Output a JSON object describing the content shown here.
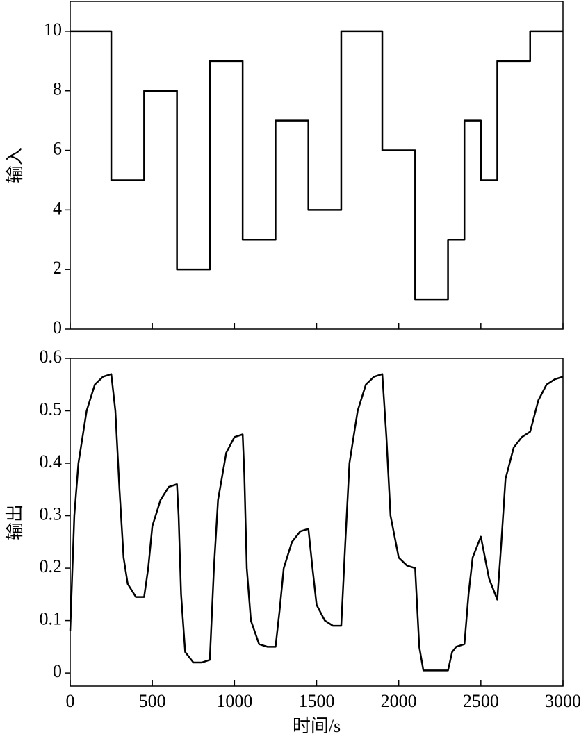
{
  "chart_data": [
    {
      "type": "line",
      "y_label": "输入",
      "x": [
        0,
        250,
        250,
        450,
        450,
        650,
        650,
        850,
        850,
        1050,
        1050,
        1250,
        1250,
        1450,
        1450,
        1650,
        1650,
        1900,
        1900,
        2100,
        2100,
        2300,
        2300,
        2400,
        2400,
        2500,
        2500,
        2600,
        2600,
        2800,
        2800,
        3000
      ],
      "series": [
        {
          "color": "#000000",
          "values": [
            10,
            10,
            5,
            5,
            8,
            8,
            2,
            2,
            9,
            9,
            3,
            3,
            7,
            7,
            4,
            4,
            10,
            10,
            6,
            6,
            1,
            1,
            3,
            3,
            7,
            7,
            5,
            5,
            9,
            9,
            10,
            10
          ]
        }
      ],
      "xlim": [
        0,
        3000
      ],
      "xticks": [
        0,
        500,
        1000,
        1500,
        2000,
        2500,
        3000
      ],
      "show_xtick_labels": false,
      "ylim": [
        0,
        11
      ],
      "yticks": [
        0,
        2,
        4,
        6,
        8,
        10
      ]
    },
    {
      "type": "line",
      "y_label": "输出",
      "x_label": "时间/s",
      "x": [
        0,
        25,
        50,
        100,
        150,
        200,
        250,
        275,
        300,
        325,
        350,
        400,
        450,
        475,
        500,
        550,
        600,
        650,
        660,
        675,
        700,
        750,
        800,
        850,
        875,
        900,
        950,
        1000,
        1050,
        1060,
        1075,
        1100,
        1150,
        1200,
        1250,
        1275,
        1300,
        1350,
        1400,
        1450,
        1475,
        1500,
        1550,
        1600,
        1650,
        1675,
        1700,
        1750,
        1800,
        1850,
        1900,
        1925,
        1950,
        2000,
        2050,
        2100,
        2125,
        2150,
        2200,
        2250,
        2300,
        2325,
        2350,
        2400,
        2425,
        2450,
        2500,
        2525,
        2550,
        2600,
        2625,
        2650,
        2700,
        2750,
        2800,
        2850,
        2900,
        2950,
        3000
      ],
      "series": [
        {
          "color": "#000000",
          "values": [
            0.08,
            0.3,
            0.4,
            0.5,
            0.55,
            0.565,
            0.57,
            0.5,
            0.35,
            0.22,
            0.17,
            0.145,
            0.145,
            0.2,
            0.28,
            0.33,
            0.355,
            0.36,
            0.3,
            0.15,
            0.04,
            0.02,
            0.02,
            0.025,
            0.2,
            0.33,
            0.42,
            0.45,
            0.455,
            0.38,
            0.2,
            0.1,
            0.055,
            0.05,
            0.05,
            0.12,
            0.2,
            0.25,
            0.27,
            0.275,
            0.2,
            0.13,
            0.1,
            0.09,
            0.09,
            0.25,
            0.4,
            0.5,
            0.55,
            0.565,
            0.57,
            0.45,
            0.3,
            0.22,
            0.205,
            0.2,
            0.05,
            0.005,
            0.005,
            0.005,
            0.005,
            0.04,
            0.05,
            0.055,
            0.15,
            0.22,
            0.26,
            0.22,
            0.18,
            0.14,
            0.25,
            0.37,
            0.43,
            0.45,
            0.46,
            0.52,
            0.55,
            0.56,
            0.565
          ]
        }
      ],
      "xlim": [
        0,
        3000
      ],
      "xticks": [
        0,
        500,
        1000,
        1500,
        2000,
        2500,
        3000
      ],
      "show_xtick_labels": true,
      "ylim": [
        -0.025,
        0.6
      ],
      "yticks": [
        0,
        0.1,
        0.2,
        0.3,
        0.4,
        0.5,
        0.6
      ]
    }
  ]
}
